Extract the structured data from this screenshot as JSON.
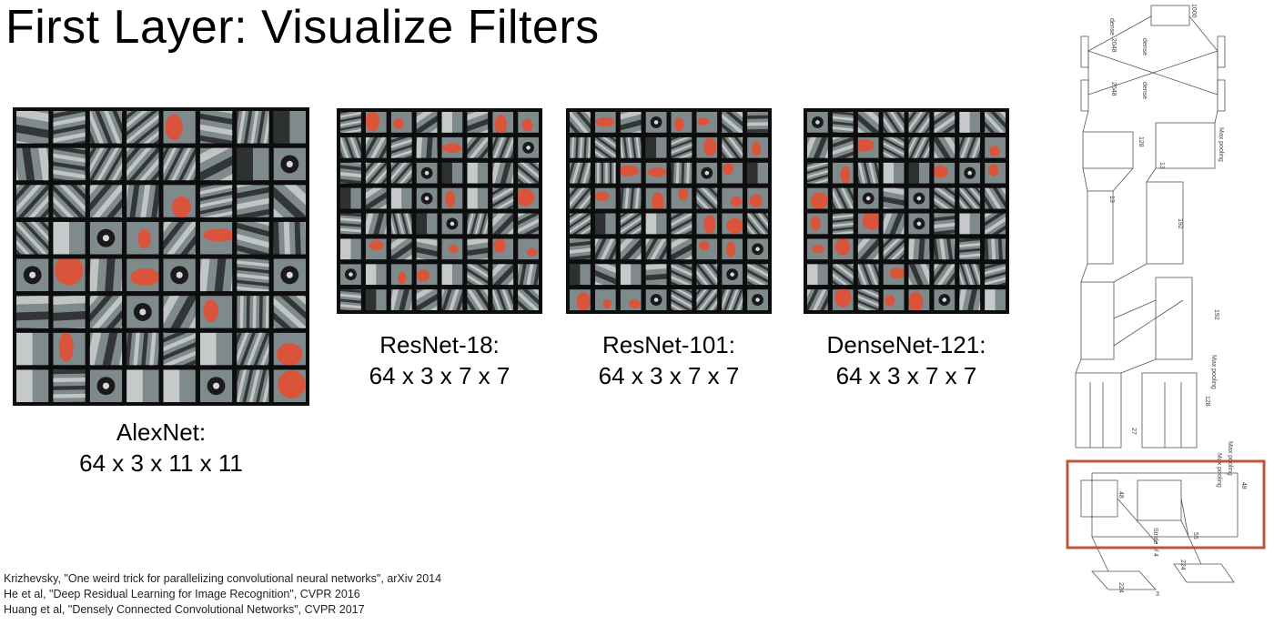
{
  "title": "First Layer: Visualize Filters",
  "filter_grids": [
    {
      "id": "alexnet",
      "name": "AlexNet:",
      "shape": "64 x 3 x 11 x 11",
      "rows": 8,
      "cols": 8
    },
    {
      "id": "resnet18",
      "name": "ResNet-18:",
      "shape": "64 x 3 x 7 x 7",
      "rows": 8,
      "cols": 8
    },
    {
      "id": "resnet101",
      "name": "ResNet-101:",
      "shape": "64 x 3 x 7 x 7",
      "rows": 8,
      "cols": 8
    },
    {
      "id": "densenet121",
      "name": "DenseNet-121:",
      "shape": "64 x 3 x 7 x 7",
      "rows": 8,
      "cols": 8
    }
  ],
  "colors": {
    "filter_gray": "#7f8a8c",
    "filter_dark": "#1a1a1a",
    "filter_light": "#d8d8d8",
    "filter_red": "#d9543a",
    "highlight_box": "#c0553a"
  },
  "references": [
    "Krizhevsky, \"One weird trick for parallelizing convolutional neural networks\", arXiv 2014",
    "He et al, \"Deep Residual Learning for Image Recognition\", CVPR 2016",
    "Huang et al, \"Densely Connected Convolutional Networks\", CVPR 2017"
  ],
  "architecture_labels": {
    "dense": "dense",
    "output": "1000",
    "fc1": "2048",
    "fc2": "2048",
    "max_pooling": "Max pooling",
    "stride": "Stride of 4",
    "c128": "128",
    "c192": "192",
    "c48": "48",
    "c13": "13",
    "c27": "27",
    "c55": "55",
    "c224": "224",
    "c3": "3"
  }
}
